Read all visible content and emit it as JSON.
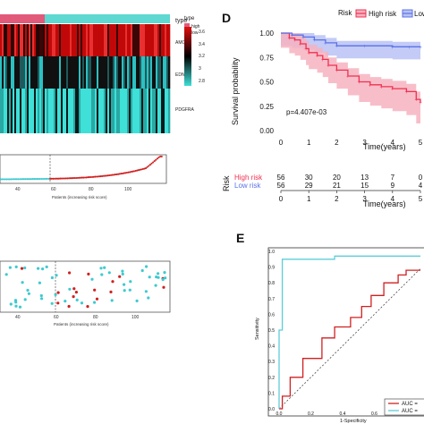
{
  "chart_data": [
    {
      "type": "heatmap",
      "annotation_label": "type",
      "legend_title": "type",
      "legend_items": [
        {
          "name": "high",
          "color": "#e25a7a"
        },
        {
          "name": "low",
          "color": "#5ed8d0"
        }
      ],
      "rows": [
        "AMOT",
        "EDN1",
        "PDGFRA"
      ],
      "color_scale": {
        "ticks": [
          "3.6",
          "3.4",
          "3.2",
          "3",
          "2.8"
        ],
        "colors": [
          "#e01010",
          "#000000",
          "#3ee0d8"
        ]
      }
    },
    {
      "type": "scatter",
      "xlabel": "Patients (increasing risk score)",
      "xticks": [
        "40",
        "60",
        "80",
        "100"
      ],
      "cutoff_at": 56,
      "series_colors": {
        "low": "#3ecad0",
        "high": "#d02020"
      }
    },
    {
      "type": "scatter",
      "xlabel": "Patients (increasing risk score)",
      "xticks": [
        "40",
        "60",
        "80",
        "100"
      ],
      "cutoff_at": 56,
      "series_colors": {
        "alive": "#3ecad0",
        "dead": "#d02020"
      }
    },
    {
      "type": "line",
      "panel_label": "D",
      "legend_title": "Risk",
      "legend": [
        "High risk",
        "Low risk"
      ],
      "xlabel": "Time(years)",
      "ylabel": "Survival probability",
      "xlim": [
        0,
        5
      ],
      "ylim": [
        0,
        1
      ],
      "xticks": [
        "0",
        "1",
        "2",
        "3",
        "4",
        "5"
      ],
      "yticks": [
        "0.00",
        "0.25",
        "0.50",
        "0.75",
        "1.00"
      ],
      "pvalue": "p=4.407e-03",
      "series": [
        {
          "name": "High risk",
          "color": "#f03050",
          "x": [
            0,
            0.3,
            0.5,
            0.7,
            0.9,
            1.0,
            1.3,
            1.5,
            1.7,
            2.0,
            2.4,
            2.8,
            3.2,
            3.6,
            4.0,
            4.5,
            4.85,
            5.0
          ],
          "y": [
            1.0,
            0.95,
            0.93,
            0.89,
            0.84,
            0.8,
            0.77,
            0.73,
            0.67,
            0.62,
            0.56,
            0.5,
            0.47,
            0.45,
            0.43,
            0.4,
            0.32,
            0.29
          ]
        },
        {
          "name": "Low risk",
          "color": "#5a72e8",
          "x": [
            0,
            0.4,
            0.8,
            1.2,
            1.6,
            2.0,
            3.0,
            4.0,
            4.6,
            5.0
          ],
          "y": [
            1.0,
            0.98,
            0.96,
            0.93,
            0.9,
            0.87,
            0.87,
            0.86,
            0.86,
            0.86
          ]
        }
      ]
    },
    {
      "type": "table",
      "title": "Risk",
      "row_labels": [
        "High risk",
        "Low risk"
      ],
      "row_colors": [
        "#f03050",
        "#5a72e8"
      ],
      "xticks": [
        "0",
        "1",
        "2",
        "3",
        "4",
        "5"
      ],
      "xlabel": "Time(years)",
      "values": [
        [
          56,
          30,
          20,
          13,
          7,
          0
        ],
        [
          56,
          29,
          21,
          15,
          9,
          4
        ]
      ]
    },
    {
      "type": "line",
      "panel_label": "E",
      "xlabel": "1-Specificity",
      "ylabel": "Sensitivity",
      "xticks": [
        "0.0",
        "0.2",
        "0.4",
        "0.6",
        "0.8"
      ],
      "yticks": [
        "0.0",
        "0.1",
        "0.2",
        "0.3",
        "0.4",
        "0.5",
        "0.6",
        "0.7",
        "0.8",
        "0.9",
        "1.0"
      ],
      "legend": [
        "AUC =",
        "AUC ="
      ],
      "series": [
        {
          "name": "red",
          "color": "#d02020",
          "x": [
            0,
            0.02,
            0.02,
            0.07,
            0.07,
            0.15,
            0.15,
            0.27,
            0.27,
            0.35,
            0.35,
            0.45,
            0.45,
            0.52,
            0.52,
            0.58,
            0.58,
            0.66,
            0.66,
            0.75,
            0.75,
            0.8,
            0.8,
            1.0
          ],
          "y": [
            0,
            0,
            0.08,
            0.08,
            0.2,
            0.2,
            0.32,
            0.32,
            0.45,
            0.45,
            0.52,
            0.52,
            0.58,
            0.58,
            0.65,
            0.65,
            0.72,
            0.72,
            0.8,
            0.8,
            0.85,
            0.85,
            0.88,
            0.88
          ]
        },
        {
          "name": "cyan",
          "color": "#5ecdd8",
          "x": [
            0,
            0,
            0.02,
            0.02,
            0.35,
            0.35,
            1.0
          ],
          "y": [
            0,
            0.5,
            0.5,
            0.95,
            0.95,
            0.97,
            0.97
          ]
        }
      ]
    }
  ]
}
